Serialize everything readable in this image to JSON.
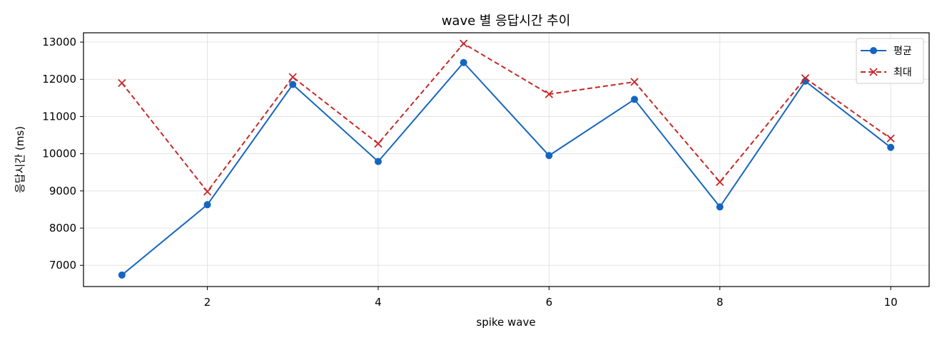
{
  "chart_data": {
    "type": "line",
    "title": "wave 별 응답시간 추이",
    "xlabel": "spike wave",
    "ylabel": "응답시간 (ms)",
    "x": [
      1,
      2,
      3,
      4,
      5,
      6,
      7,
      8,
      9,
      10
    ],
    "xlim": [
      0.55,
      10.45
    ],
    "ylim": [
      6430,
      13250
    ],
    "x_ticks": [
      2,
      4,
      6,
      8,
      10
    ],
    "y_ticks": [
      7000,
      8000,
      9000,
      10000,
      11000,
      12000,
      13000
    ],
    "grid": true,
    "legend_position": "top-right",
    "series": [
      {
        "name": "평균",
        "color": "#1565c0",
        "line_style": "solid",
        "marker": "circle",
        "values": [
          6740,
          8630,
          11860,
          9790,
          12450,
          9950,
          11460,
          8570,
          11950,
          10170
        ]
      },
      {
        "name": "최대",
        "color": "#c62828",
        "line_style": "dashed",
        "marker": "x",
        "values": [
          11900,
          8980,
          12060,
          10270,
          12960,
          11600,
          11930,
          9240,
          12030,
          10410
        ]
      }
    ]
  }
}
